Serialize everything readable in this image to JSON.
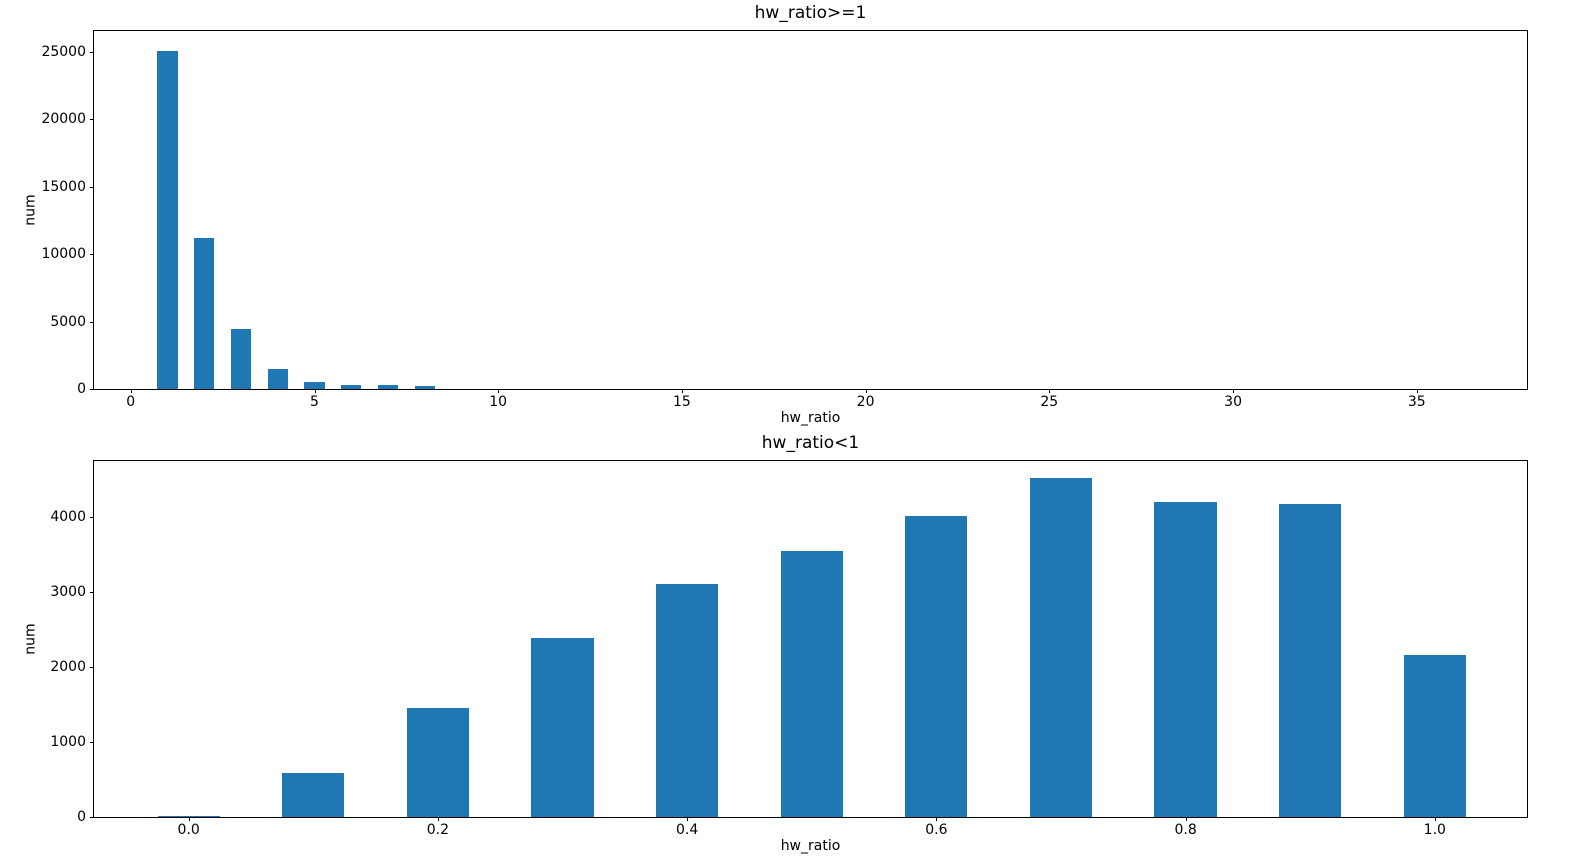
{
  "figure": {
    "background_color": "#ffffff",
    "bar_color": "#1f77b4",
    "axis_color": "#000000"
  },
  "chart_data": [
    {
      "type": "bar",
      "title": "hw_ratio>=1",
      "xlabel": "hw_ratio",
      "ylabel": "num",
      "x": [
        1,
        2,
        3,
        4,
        5,
        6,
        7,
        8
      ],
      "values": [
        25100,
        11200,
        4430,
        1460,
        550,
        330,
        270,
        200
      ],
      "bar_width": 0.55,
      "xlim": [
        -1.0,
        38.0
      ],
      "ylim": [
        0,
        26550
      ],
      "xticks": [
        0,
        5,
        10,
        15,
        20,
        25,
        30,
        35
      ],
      "xtick_labels": [
        "0",
        "5",
        "10",
        "15",
        "20",
        "25",
        "30",
        "35"
      ],
      "yticks": [
        0,
        5000,
        10000,
        15000,
        20000,
        25000
      ],
      "ytick_labels": [
        "0",
        "5000",
        "10000",
        "15000",
        "20000",
        "25000"
      ],
      "grid": false,
      "legend": null
    },
    {
      "type": "bar",
      "title": "hw_ratio<1",
      "xlabel": "hw_ratio",
      "ylabel": "num",
      "x": [
        0.0,
        0.1,
        0.2,
        0.3,
        0.4,
        0.5,
        0.6,
        0.7,
        0.8,
        0.9,
        1.0
      ],
      "values": [
        20,
        590,
        1450,
        2380,
        3110,
        3540,
        4010,
        4520,
        4200,
        4170,
        2160
      ],
      "bar_width": 0.05,
      "xlim": [
        -0.076,
        1.074
      ],
      "ylim": [
        0,
        4745
      ],
      "xticks": [
        0.0,
        0.2,
        0.4,
        0.6,
        0.8,
        1.0
      ],
      "xtick_labels": [
        "0.0",
        "0.2",
        "0.4",
        "0.6",
        "0.8",
        "1.0"
      ],
      "yticks": [
        0,
        1000,
        2000,
        3000,
        4000
      ],
      "ytick_labels": [
        "0",
        "1000",
        "2000",
        "3000",
        "4000"
      ],
      "grid": false,
      "legend": null
    }
  ]
}
